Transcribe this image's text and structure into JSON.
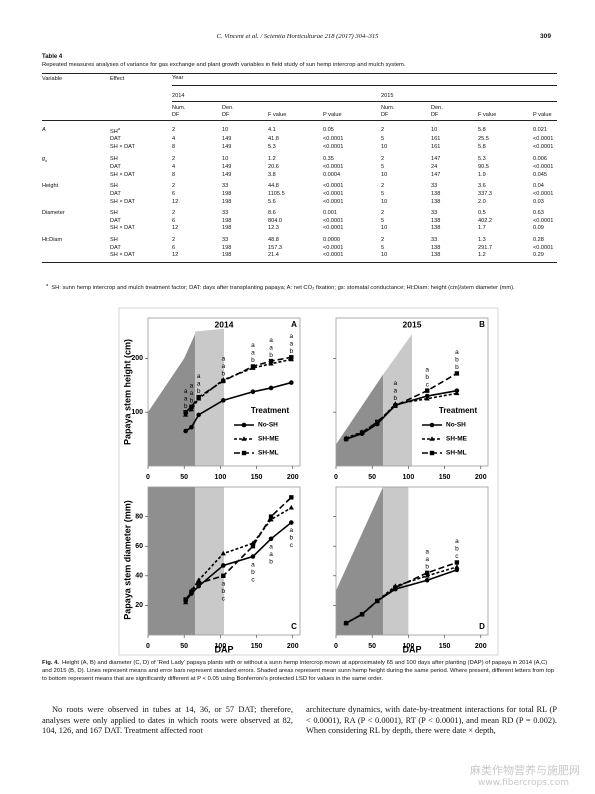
{
  "header": {
    "journal": "C. Vincent et al. / Scientia Horticulturae 218 (2017) 304–315",
    "page": "309"
  },
  "table": {
    "label": "Table 4",
    "caption": "Repeated measures analyses of variance for gas exchange and plant growth variables in field study of sun hemp intercrop and mulch system.",
    "head": {
      "variable": "Variable",
      "effect": "Effect",
      "year": "Year",
      "years": [
        "2014",
        "2015"
      ],
      "num": "Num.",
      "den": "Den.",
      "df": "DF",
      "f": "F value",
      "p": "P value"
    },
    "rows": [
      {
        "variable": "A",
        "effect": "SH",
        "effect_note": "a",
        "cells": [
          "2",
          "10",
          "4.1",
          "0.05",
          "2",
          "10",
          "5.8",
          "0.021"
        ]
      },
      {
        "effect": "DAT",
        "cells": [
          "4",
          "149",
          "41.8",
          "<0.0001",
          "5",
          "161",
          "25.5",
          "<0.0001"
        ]
      },
      {
        "effect": "SH × DAT",
        "cells": [
          "8",
          "149",
          "5.3",
          "<0.0001",
          "10",
          "161",
          "5.8",
          "<0.0001"
        ]
      },
      {
        "variable": "g",
        "variable_sub": "s",
        "effect": "SH",
        "cells": [
          "2",
          "10",
          "1.2",
          "0.35",
          "2",
          "147",
          "5.3",
          "0.006"
        ]
      },
      {
        "effect": "DAT",
        "cells": [
          "4",
          "149",
          "20.6",
          "<0.0001",
          "5",
          "24",
          "90.5",
          "<0.0001"
        ]
      },
      {
        "effect": "SH × DAT",
        "cells": [
          "8",
          "149",
          "3.8",
          "0.0004",
          "10",
          "147",
          "1.9",
          "0.045"
        ]
      },
      {
        "variable": "Height",
        "effect": "SH",
        "cells": [
          "2",
          "33",
          "44.8",
          "<0.0001",
          "2",
          "33",
          "3.6",
          "0.04"
        ]
      },
      {
        "effect": "DAT",
        "cells": [
          "6",
          "198",
          "1105.5",
          "<0.0001",
          "5",
          "138",
          "337.3",
          "<0.0001"
        ]
      },
      {
        "effect": "SH × DAT",
        "cells": [
          "12",
          "198",
          "5.6",
          "<0.0001",
          "10",
          "138",
          "2.0",
          "0.03"
        ]
      },
      {
        "variable": "Diameter",
        "effect": "SH",
        "cells": [
          "2",
          "33",
          "8.6",
          "0.001",
          "2",
          "33",
          "0.5",
          "0.63"
        ]
      },
      {
        "effect": "DAT",
        "cells": [
          "6",
          "198",
          "804.0",
          "<0.0001",
          "5",
          "138",
          "402.2",
          "<0.0001"
        ]
      },
      {
        "effect": "SH × DAT",
        "cells": [
          "12",
          "198",
          "12.3",
          "<0.0001",
          "10",
          "138",
          "1.7",
          "0.09"
        ]
      },
      {
        "variable": "Ht:Diam",
        "effect": "SH",
        "cells": [
          "2",
          "33",
          "48.8",
          "0.0000",
          "2",
          "33",
          "1.3",
          "0.28"
        ]
      },
      {
        "effect": "DAT",
        "cells": [
          "6",
          "198",
          "157.3",
          "<0.0001",
          "5",
          "138",
          "291.7",
          "<0.0001"
        ]
      },
      {
        "effect": "SH × DAT",
        "cells": [
          "12",
          "198",
          "21.4",
          "<0.0001",
          "10",
          "138",
          "1.2",
          "0.29"
        ]
      }
    ],
    "footnote": {
      "marker": "a",
      "text": "SH: sunn hemp intercrop and mulch treatment factor; DAT: days after transplanting papaya; A: net CO₂ fixation; gs: stomatal conductance; Ht:Diam: height (cm)/stem diameter (mm)."
    }
  },
  "figure": {
    "y_labels": [
      "Papaya stem height (cm)",
      "Papaya stem diameter (mm)"
    ],
    "x_label": "DAP",
    "legend_title": "Treatment",
    "panels": [
      {
        "letter": "A",
        "title": "2014",
        "xlim": [
          0,
          210
        ],
        "xticks": [
          0,
          50,
          100,
          150,
          200
        ],
        "ylim": [
          0,
          275
        ],
        "yticks": [
          100,
          200
        ],
        "y_tick_labels": true,
        "legend": true,
        "letters_side": "above",
        "shades": [
          {
            "x": [
              0,
              50,
              65
            ],
            "top": [
              100,
              200,
              245
            ],
            "color": "#8f8f8f"
          },
          {
            "x": [
              65,
              105
            ],
            "top": [
              250,
              255
            ],
            "color": "#c9c9c9"
          }
        ],
        "x": [
          52,
          60,
          70,
          104,
          145,
          170,
          198
        ],
        "series": [
          {
            "name": "No-SH",
            "marker": "circle",
            "dash": "none",
            "values": [
              65,
              72,
              95,
              122,
              138,
              145,
              155
            ]
          },
          {
            "name": "SH-ME",
            "marker": "triangle",
            "dash": "3 2",
            "values": [
              95,
              105,
              125,
              160,
              182,
              190,
              198
            ]
          },
          {
            "name": "SH-ML",
            "marker": "square",
            "dash": "6 3",
            "values": [
              100,
              110,
              128,
              158,
              185,
              195,
              202
            ]
          }
        ],
        "letters": [
          {
            "x": 52,
            "labels": [
              "a",
              "a",
              "b"
            ]
          },
          {
            "x": 60,
            "labels": [
              "a",
              "a",
              "b"
            ]
          },
          {
            "x": 70,
            "labels": [
              "a",
              "a",
              "b"
            ]
          },
          {
            "x": 104,
            "labels": [
              "a",
              "a",
              "b"
            ]
          },
          {
            "x": 145,
            "labels": [
              "a",
              "a",
              "b"
            ]
          },
          {
            "x": 170,
            "labels": [
              "a",
              "a",
              "b"
            ]
          },
          {
            "x": 198,
            "labels": [
              "a",
              "a",
              "b"
            ]
          }
        ]
      },
      {
        "letter": "B",
        "title": "2015",
        "xlim": [
          0,
          210
        ],
        "xticks": [
          0,
          50,
          100,
          150,
          200
        ],
        "ylim": [
          0,
          275
        ],
        "yticks": [
          100,
          200
        ],
        "y_tick_labels": false,
        "legend": true,
        "letters_side": "above",
        "shades": [
          {
            "x": [
              0,
              65
            ],
            "top": [
              40,
              170
            ],
            "color": "#8f8f8f"
          },
          {
            "x": [
              65,
              105
            ],
            "top": [
              170,
              245
            ],
            "color": "#c9c9c9"
          }
        ],
        "x": [
          14,
          36,
          57,
          82,
          126,
          167
        ],
        "series": [
          {
            "name": "No-SH",
            "marker": "circle",
            "dash": "none",
            "values": [
              50,
              60,
              78,
              113,
              130,
              140
            ]
          },
          {
            "name": "SH-ME",
            "marker": "triangle",
            "dash": "3 2",
            "values": [
              52,
              63,
              80,
              115,
              125,
              135
            ]
          },
          {
            "name": "SH-ML",
            "marker": "square",
            "dash": "6 3",
            "values": [
              50,
              62,
              82,
              112,
              140,
              172
            ]
          }
        ],
        "letters": [
          {
            "x": 82,
            "labels": [
              "a",
              "a",
              "b"
            ]
          },
          {
            "x": 126,
            "labels": [
              "a",
              "b",
              "c"
            ]
          },
          {
            "x": 167,
            "labels": [
              "a",
              "b",
              "b"
            ]
          }
        ]
      },
      {
        "letter": "C",
        "title": null,
        "xlim": [
          0,
          210
        ],
        "xticks": [
          0,
          50,
          100,
          150,
          200
        ],
        "ylim": [
          0,
          100
        ],
        "yticks": [
          20,
          40,
          60,
          80
        ],
        "y_tick_labels": true,
        "legend": false,
        "letters_side": "below",
        "shades": [
          {
            "x": [
              0,
              65
            ],
            "top": [
              100,
              100
            ],
            "color": "#8f8f8f"
          },
          {
            "x": [
              65,
              105
            ],
            "top": [
              100,
              100
            ],
            "color": "#c9c9c9"
          }
        ],
        "x": [
          52,
          60,
          70,
          104,
          145,
          170,
          198
        ],
        "series": [
          {
            "name": "No-SH",
            "marker": "circle",
            "dash": "none",
            "values": [
              23,
              28,
              33,
              47,
              53,
              65,
              76
            ]
          },
          {
            "name": "SH-ME",
            "marker": "triangle",
            "dash": "3 2",
            "values": [
              22,
              30,
              37,
              55,
              62,
              78,
              86
            ]
          },
          {
            "name": "SH-ML",
            "marker": "square",
            "dash": "6 3",
            "values": [
              24,
              29,
              35,
              40,
              60,
              80,
              93
            ]
          }
        ],
        "letters": [
          {
            "x": 104,
            "labels": [
              "a",
              "b",
              "c"
            ]
          },
          {
            "x": 145,
            "labels": [
              "a",
              "b",
              "c"
            ]
          },
          {
            "x": 170,
            "labels": [
              "a",
              "a",
              "b"
            ]
          },
          {
            "x": 198,
            "labels": [
              "a",
              "b",
              "c"
            ]
          }
        ]
      },
      {
        "letter": "D",
        "title": null,
        "xlim": [
          0,
          210
        ],
        "xticks": [
          0,
          50,
          100,
          150,
          200
        ],
        "ylim": [
          0,
          100
        ],
        "yticks": [
          20,
          40,
          60,
          80
        ],
        "y_tick_labels": false,
        "legend": false,
        "letters_side": "above",
        "shades": [
          {
            "x": [
              0,
              65
            ],
            "top": [
              30,
              100
            ],
            "color": "#8f8f8f"
          },
          {
            "x": [
              65,
              100
            ],
            "top": [
              100,
              100
            ],
            "color": "#c9c9c9"
          }
        ],
        "x": [
          14,
          36,
          57,
          82,
          126,
          167
        ],
        "series": [
          {
            "name": "No-SH",
            "marker": "circle",
            "dash": "none",
            "values": [
              8,
              14,
              23,
              31,
              37,
              44
            ]
          },
          {
            "name": "SH-ME",
            "marker": "triangle",
            "dash": "3 2",
            "values": [
              8,
              14,
              23,
              33,
              40,
              46
            ]
          },
          {
            "name": "SH-ML",
            "marker": "square",
            "dash": "6 3",
            "values": [
              8,
              14,
              23,
              32,
              42,
              49
            ]
          }
        ],
        "letters": [
          {
            "x": 126,
            "labels": [
              "a",
              "a",
              "b"
            ]
          },
          {
            "x": 167,
            "labels": [
              "a",
              "b",
              "c"
            ]
          }
        ]
      }
    ],
    "caption": {
      "label": "Fig. 4.",
      "text": "Height (A, B) and diameter (C, D) of ‘Red Lady’ papaya plants with or without a sunn hemp intercrop mown at approximately 65 and 100 days after planting (DAP) of papaya in 2014 (A,C) and 2015 (B, D). Lines represent means and error bars represent standard errors. Shaded areas represent mean sunn hemp height during the same period. Where present, different letters from top to bottom represent means that are significantly different at P < 0.05 using Bonferroni’s protected LSD for values in the same order."
    }
  },
  "body": {
    "left": "No roots were observed in tubes at 14, 36, or 57 DAT; therefore, analyses were only applied to dates in which roots were observed at 82, 104, 126, and 167 DAT. Treatment affected root",
    "right": "architecture dynamics, with date-by-treatment interactions for total RL (P < 0.0001), RA (P < 0.0001), RT (P < 0.0001), and mean RD (P = 0.002). When considering RL by depth, there were date × depth,"
  },
  "watermark": [
    "麻类作物营养与施肥网",
    "www.fibercrops.com"
  ]
}
